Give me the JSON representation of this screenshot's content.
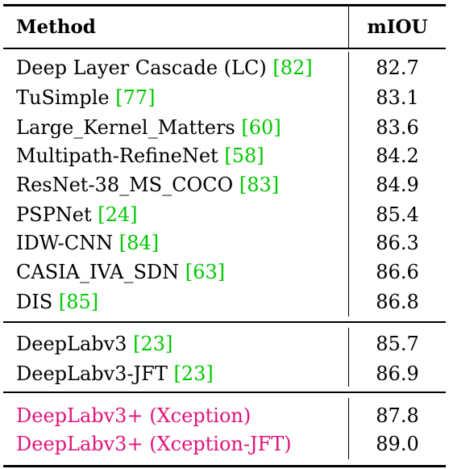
{
  "table": {
    "headers": {
      "method": "Method",
      "miou": "mIOU"
    },
    "groups": [
      {
        "rows": [
          {
            "method": "Deep Layer Cascade (LC)",
            "ref": "82",
            "miou": "82.7"
          },
          {
            "method": "TuSimple",
            "ref": "77",
            "miou": "83.1"
          },
          {
            "method": "Large_Kernel_Matters",
            "ref": "60",
            "miou": "83.6"
          },
          {
            "method": "Multipath-RefineNet",
            "ref": "58",
            "miou": "84.2"
          },
          {
            "method": "ResNet-38_MS_COCO",
            "ref": "83",
            "miou": "84.9"
          },
          {
            "method": "PSPNet",
            "ref": "24",
            "miou": "85.4"
          },
          {
            "method": "IDW-CNN",
            "ref": "84",
            "miou": "86.3"
          },
          {
            "method": "CASIA_IVA_SDN",
            "ref": "63",
            "miou": "86.6"
          },
          {
            "method": "DIS",
            "ref": "85",
            "miou": "86.8"
          }
        ]
      },
      {
        "rows": [
          {
            "method": "DeepLabv3",
            "ref": "23",
            "miou": "85.7"
          },
          {
            "method": "DeepLabv3-JFT",
            "ref": "23",
            "miou": "86.9"
          }
        ]
      },
      {
        "rows": [
          {
            "method": "DeepLabv3+ (Xception)",
            "ref": "",
            "miou": "87.8"
          },
          {
            "method": "DeepLabv3+ (Xception-JFT)",
            "ref": "",
            "miou": "89.0"
          }
        ]
      }
    ]
  },
  "colors": {
    "citation": "#00c800",
    "highlight_rows": "#e0127a",
    "text": "#000000",
    "background": "#ffffff"
  }
}
